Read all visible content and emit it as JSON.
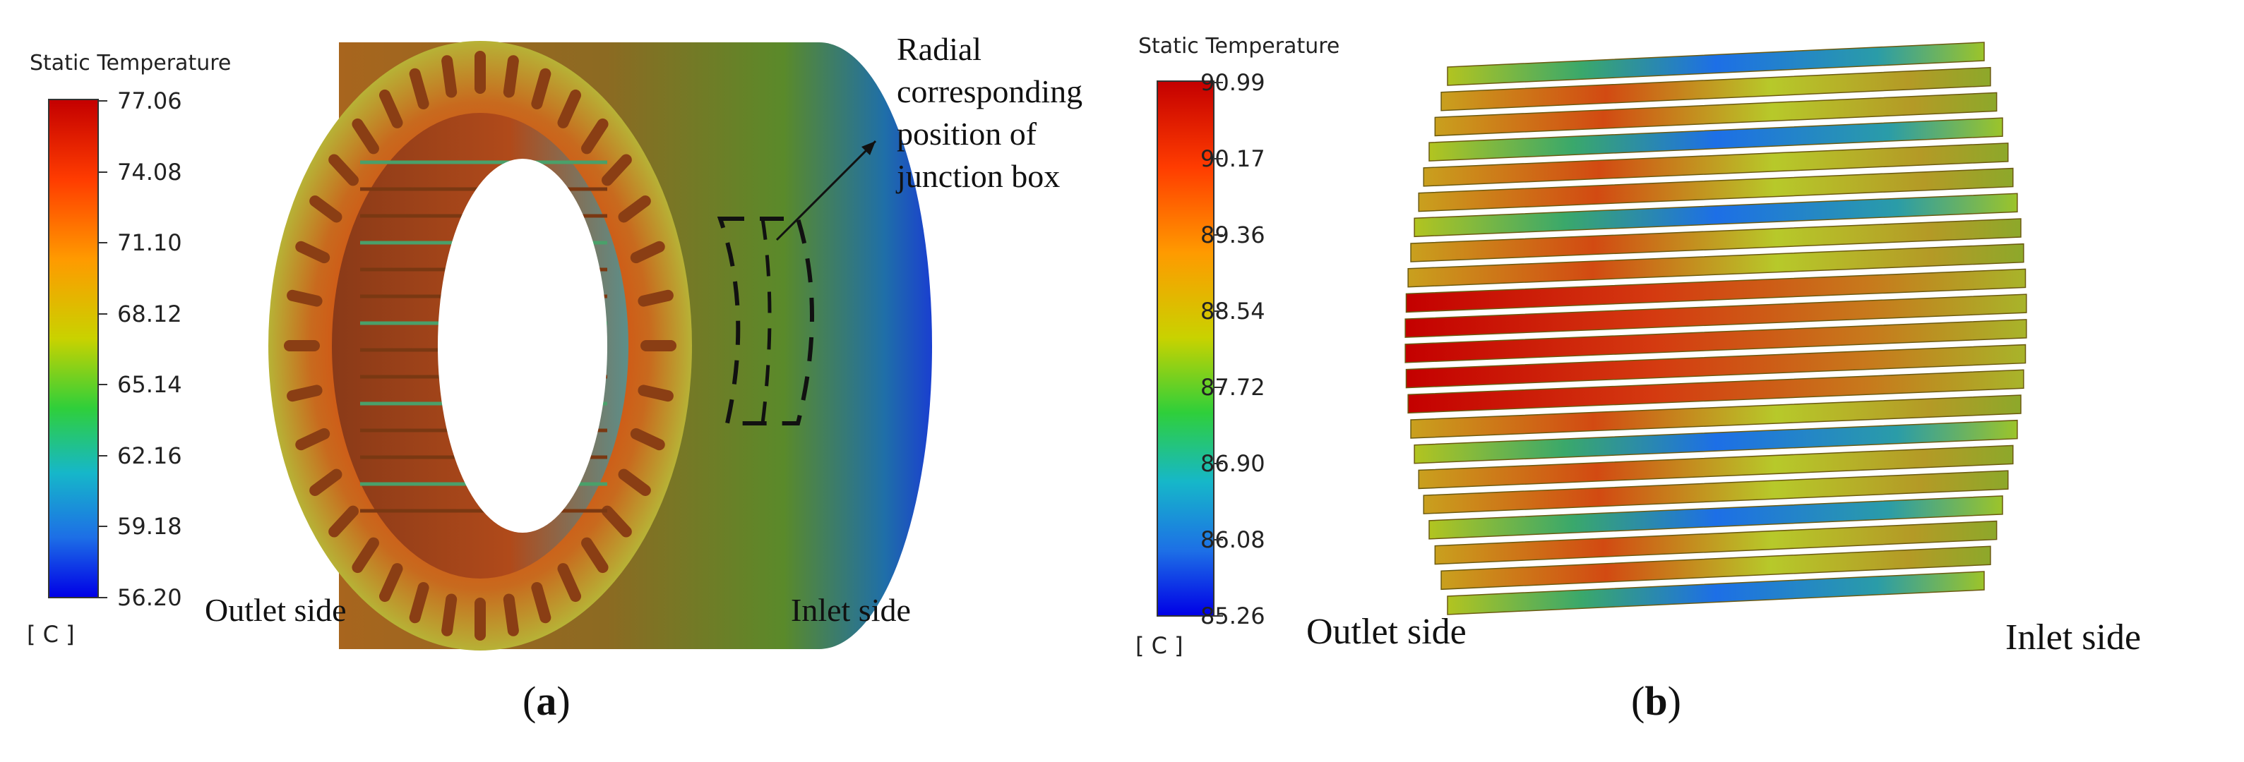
{
  "panel_a": {
    "legend": {
      "title": "Static Temperature",
      "ticks": [
        "77.06",
        "74.08",
        "71.10",
        "68.12",
        "65.14",
        "62.16",
        "59.18",
        "56.20"
      ],
      "unit": "[ C ]"
    },
    "labels": {
      "outlet": "Outlet side",
      "inlet": "Inlet side",
      "annotation_line1": "Radial",
      "annotation_line2": "corresponding",
      "annotation_line3": "position of",
      "annotation_line4": "junction box"
    },
    "caption_letter": "a"
  },
  "panel_b": {
    "legend": {
      "title": "Static Temperature",
      "ticks": [
        "90.99",
        "90.17",
        "89.36",
        "88.54",
        "87.72",
        "86.90",
        "86.08",
        "85.26"
      ],
      "unit": "[ C ]"
    },
    "labels": {
      "outlet": "Outlet side",
      "inlet": "Inlet side"
    },
    "caption_letter": "b"
  },
  "colors": {
    "hot": "#c40000",
    "warm": "#ff9a00",
    "mid": "#c9d200",
    "cool": "#16b7c9",
    "cold": "#0000e6"
  }
}
